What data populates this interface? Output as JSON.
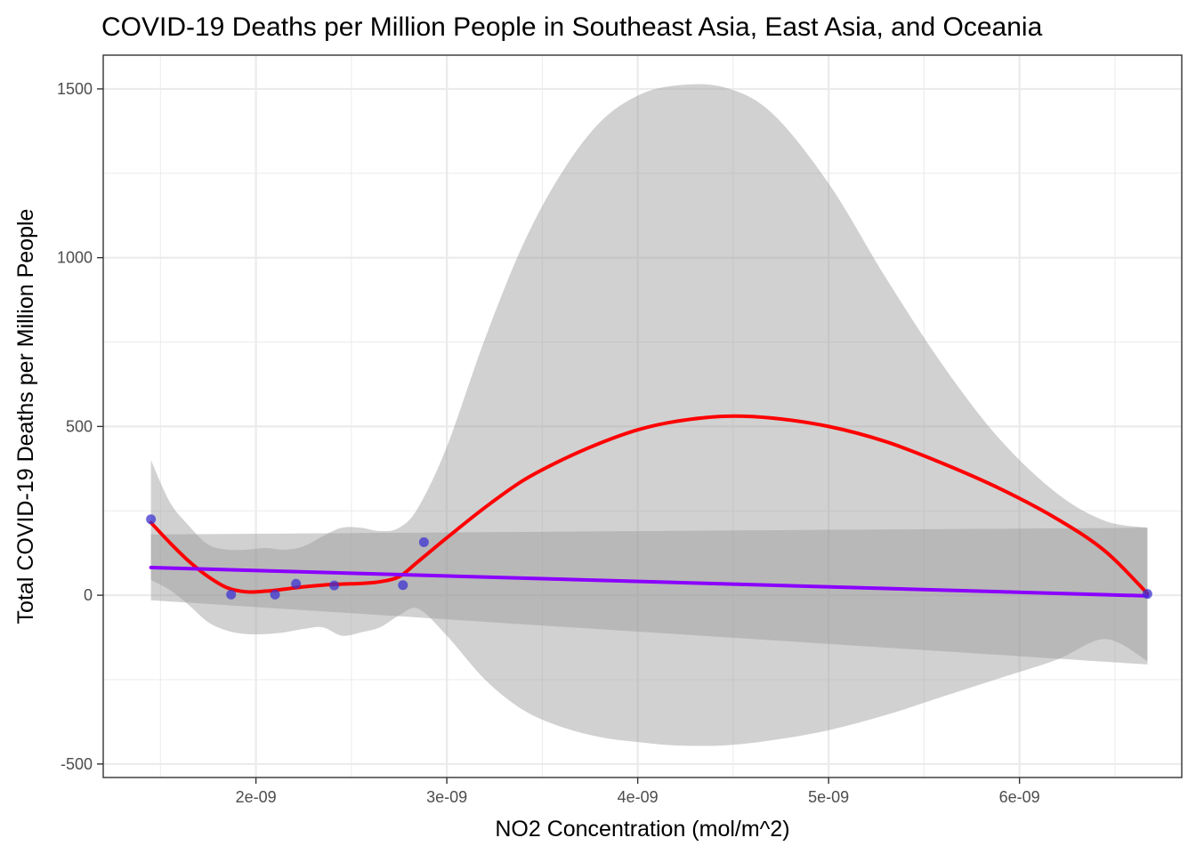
{
  "chart_data": {
    "type": "scatter",
    "title": "COVID-19 Deaths per Million People in Southeast Asia, East Asia, and Oceania",
    "xlabel": "NO2 Concentration (mol/m^2)",
    "ylabel": "Total COVID-19 Deaths per Million People",
    "xlim": [
      1.2e-09,
      6.85e-09
    ],
    "ylim": [
      -540,
      1600
    ],
    "x_ticks": [
      2e-09,
      3e-09,
      4e-09,
      5e-09,
      6e-09
    ],
    "x_tick_labels": [
      "2e-09",
      "3e-09",
      "4e-09",
      "5e-09",
      "6e-09"
    ],
    "y_ticks": [
      -500,
      0,
      500,
      1000,
      1500
    ],
    "y_tick_labels": [
      "-500",
      "0",
      "500",
      "1000",
      "1500"
    ],
    "grid": true,
    "legend": "none",
    "colors": {
      "points": "#3c33d1",
      "loess_line": "#ff0000",
      "linear_line": "#8b00ff",
      "band": "#999999",
      "panel_border": "#333333",
      "grid": "#ebebeb"
    },
    "points": {
      "x": [
        1.45e-09,
        1.87e-09,
        2.1e-09,
        2.21e-09,
        2.41e-09,
        2.77e-09,
        2.88e-09,
        6.67e-09
      ],
      "y": [
        225,
        2,
        2,
        34,
        29,
        30,
        157,
        4
      ]
    },
    "loess_fit": {
      "x": [
        1.45e-09,
        1.55e-09,
        1.65e-09,
        1.75e-09,
        1.85e-09,
        1.95e-09,
        2.05e-09,
        2.15e-09,
        2.25e-09,
        2.35e-09,
        2.45e-09,
        2.55e-09,
        2.65e-09,
        2.75e-09,
        2.85e-09,
        3e-09,
        3.2e-09,
        3.4e-09,
        3.6e-09,
        3.8e-09,
        4e-09,
        4.2e-09,
        4.45e-09,
        4.7e-09,
        5e-09,
        5.3e-09,
        5.6e-09,
        5.9e-09,
        6.2e-09,
        6.45e-09,
        6.67e-09
      ],
      "y": [
        215,
        155,
        100,
        55,
        22,
        10,
        12,
        18,
        25,
        30,
        33,
        35,
        40,
        55,
        100,
        170,
        260,
        340,
        400,
        450,
        490,
        515,
        530,
        525,
        500,
        455,
        390,
        315,
        225,
        130,
        5
      ],
      "lower": [
        45,
        15,
        -30,
        -80,
        -105,
        -115,
        -115,
        -110,
        -100,
        -95,
        -120,
        -110,
        -95,
        -60,
        -40,
        -120,
        -250,
        -340,
        -390,
        -420,
        -435,
        -445,
        -445,
        -430,
        -400,
        -355,
        -300,
        -245,
        -190,
        -130,
        -195
      ],
      "upper": [
        400,
        275,
        205,
        150,
        135,
        135,
        140,
        135,
        145,
        175,
        200,
        200,
        190,
        200,
        260,
        440,
        760,
        1040,
        1250,
        1400,
        1480,
        1510,
        1505,
        1430,
        1220,
        940,
        680,
        460,
        300,
        220,
        200
      ]
    },
    "linear_fit": {
      "x": [
        1.45e-09,
        6.67e-09
      ],
      "y": [
        82,
        -2
      ],
      "lower": [
        -15,
        -205
      ],
      "upper": [
        180,
        200
      ]
    }
  }
}
